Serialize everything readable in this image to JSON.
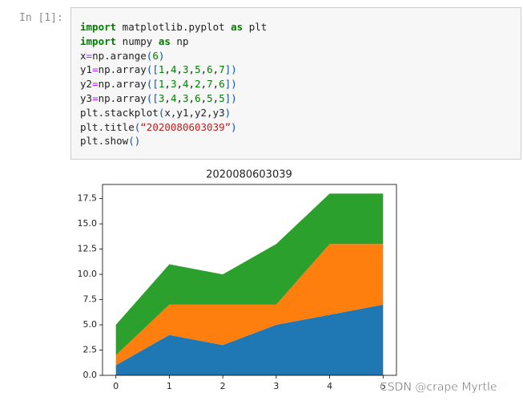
{
  "prompt": "In [1]:",
  "code": [
    "import matplotlib.pyplot as plt",
    "import numpy as np",
    "x=np.arange(6)",
    "y1=np.array([1,4,3,5,6,7])",
    "y2=np.array([1,3,4,2,7,6])",
    "y3=np.array([3,4,3,6,5,5])",
    "plt.stackplot(x,y1,y2,y3)",
    "plt.title(“2020080603039”)",
    "plt.show()"
  ],
  "chart_data": {
    "type": "stackplot",
    "title": "2020080603039",
    "x": [
      0,
      1,
      2,
      3,
      4,
      5
    ],
    "series": [
      {
        "color": "#1f77b4",
        "values": [
          1,
          4,
          3,
          5,
          6,
          7
        ]
      },
      {
        "color": "#ff7f0e",
        "values": [
          1,
          3,
          4,
          2,
          7,
          6
        ]
      },
      {
        "color": "#2ca02c",
        "values": [
          3,
          4,
          3,
          6,
          5,
          5
        ]
      }
    ],
    "xlim": [
      -0.25,
      5.25
    ],
    "xticks": [
      0,
      1,
      2,
      3,
      4,
      5
    ],
    "ylim": [
      0,
      18.9
    ],
    "yticks": [
      {
        "value": 0,
        "label": "0.0"
      },
      {
        "value": 2.5,
        "label": "2.5"
      },
      {
        "value": 5,
        "label": "5.0"
      },
      {
        "value": 7.5,
        "label": "7.5"
      },
      {
        "value": 10,
        "label": "10.0"
      },
      {
        "value": 12.5,
        "label": "12.5"
      },
      {
        "value": 15,
        "label": "15.0"
      },
      {
        "value": 17.5,
        "label": "17.5"
      }
    ]
  },
  "watermark": "CSDN @crape Myrtle♡"
}
